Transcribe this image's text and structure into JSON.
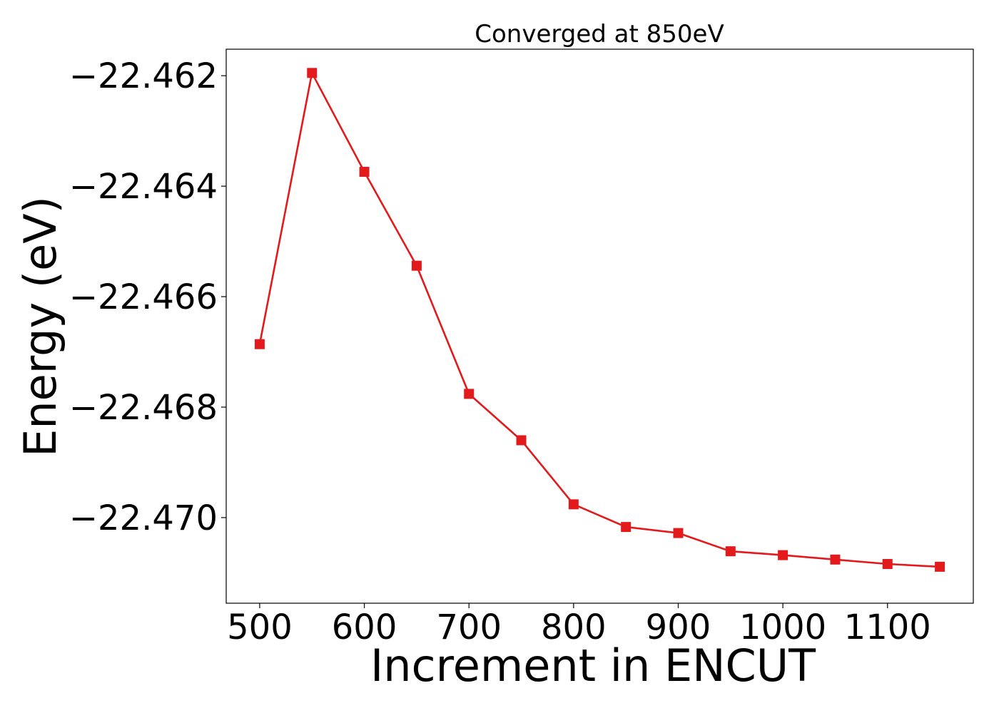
{
  "chart_data": {
    "type": "line",
    "title": "Converged at 850eV",
    "xlabel": "Increment in ENCUT",
    "ylabel": "Energy (eV)",
    "x": [
      500,
      550,
      600,
      650,
      700,
      750,
      800,
      850,
      900,
      950,
      1000,
      1050,
      1100,
      1150
    ],
    "series": [
      {
        "values": [
          -22.46686,
          -22.46195,
          -22.46374,
          -22.46544,
          -22.46776,
          -22.4686,
          -22.46976,
          -22.47017,
          -22.47028,
          -22.47061,
          -22.47068,
          -22.47076,
          -22.47084,
          -22.47089
        ],
        "color": "#e31a1c",
        "marker": "square"
      }
    ],
    "xticks": [
      500,
      600,
      700,
      800,
      900,
      1000,
      1100
    ],
    "xtick_labels": [
      "500",
      "600",
      "700",
      "800",
      "900",
      "1000",
      "1100"
    ],
    "yticks": [
      -22.462,
      -22.464,
      -22.466,
      -22.468,
      -22.47
    ],
    "ytick_labels": [
      "−22.462",
      "−22.464",
      "−22.466",
      "−22.468",
      "−22.470"
    ],
    "xlim": [
      468,
      1182
    ],
    "ylim": [
      -22.47155,
      -22.46152
    ],
    "grid": false,
    "legend": false
  }
}
